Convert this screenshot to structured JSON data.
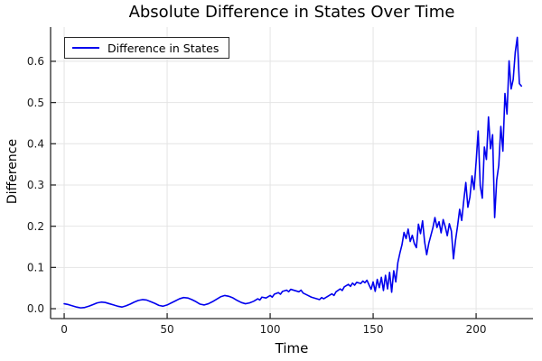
{
  "chart_data": {
    "type": "line",
    "title": "Absolute Difference in States Over Time",
    "xlabel": "Time",
    "ylabel": "Difference",
    "grid": true,
    "legend_position": "top-left",
    "xlim": [
      -6.6,
      227.6
    ],
    "ylim": [
      -0.024,
      0.683
    ],
    "xticks": [
      {
        "v": 0,
        "label": "0"
      },
      {
        "v": 50,
        "label": "50"
      },
      {
        "v": 100,
        "label": "100"
      },
      {
        "v": 150,
        "label": "150"
      },
      {
        "v": 200,
        "label": "200"
      }
    ],
    "yticks": [
      {
        "v": 0.0,
        "label": "0.0"
      },
      {
        "v": 0.1,
        "label": "0.1"
      },
      {
        "v": 0.2,
        "label": "0.2"
      },
      {
        "v": 0.3,
        "label": "0.3"
      },
      {
        "v": 0.4,
        "label": "0.4"
      },
      {
        "v": 0.5,
        "label": "0.5"
      },
      {
        "v": 0.6,
        "label": "0.6"
      }
    ],
    "colors": {
      "line": "#0000ee",
      "grid": "#e4e4e4",
      "axis": "#2a2a2a",
      "tick_text": "#1a1a1a",
      "background": "#ffffff"
    },
    "series": [
      {
        "name": "Difference in States",
        "color": "#0000ee",
        "points": [
          [
            0,
            0.012
          ],
          [
            2,
            0.01
          ],
          [
            4,
            0.007
          ],
          [
            6,
            0.004
          ],
          [
            8,
            0.002
          ],
          [
            10,
            0.003
          ],
          [
            12,
            0.006
          ],
          [
            14,
            0.01
          ],
          [
            16,
            0.014
          ],
          [
            18,
            0.016
          ],
          [
            20,
            0.015
          ],
          [
            22,
            0.012
          ],
          [
            24,
            0.009
          ],
          [
            26,
            0.006
          ],
          [
            28,
            0.004
          ],
          [
            30,
            0.007
          ],
          [
            32,
            0.011
          ],
          [
            34,
            0.016
          ],
          [
            36,
            0.02
          ],
          [
            38,
            0.022
          ],
          [
            40,
            0.021
          ],
          [
            42,
            0.017
          ],
          [
            44,
            0.013
          ],
          [
            46,
            0.008
          ],
          [
            48,
            0.006
          ],
          [
            50,
            0.009
          ],
          [
            52,
            0.014
          ],
          [
            54,
            0.019
          ],
          [
            56,
            0.024
          ],
          [
            58,
            0.027
          ],
          [
            60,
            0.026
          ],
          [
            62,
            0.022
          ],
          [
            64,
            0.017
          ],
          [
            66,
            0.011
          ],
          [
            68,
            0.009
          ],
          [
            70,
            0.012
          ],
          [
            72,
            0.017
          ],
          [
            74,
            0.023
          ],
          [
            76,
            0.029
          ],
          [
            78,
            0.032
          ],
          [
            80,
            0.03
          ],
          [
            82,
            0.026
          ],
          [
            84,
            0.02
          ],
          [
            86,
            0.015
          ],
          [
            88,
            0.012
          ],
          [
            90,
            0.014
          ],
          [
            92,
            0.018
          ],
          [
            94,
            0.024
          ],
          [
            95,
            0.021
          ],
          [
            96,
            0.028
          ],
          [
            98,
            0.026
          ],
          [
            100,
            0.032
          ],
          [
            101,
            0.028
          ],
          [
            102,
            0.035
          ],
          [
            104,
            0.039
          ],
          [
            105,
            0.035
          ],
          [
            106,
            0.042
          ],
          [
            108,
            0.045
          ],
          [
            109,
            0.041
          ],
          [
            110,
            0.047
          ],
          [
            112,
            0.044
          ],
          [
            114,
            0.041
          ],
          [
            115,
            0.045
          ],
          [
            116,
            0.038
          ],
          [
            118,
            0.033
          ],
          [
            120,
            0.028
          ],
          [
            122,
            0.025
          ],
          [
            124,
            0.022
          ],
          [
            125,
            0.027
          ],
          [
            126,
            0.024
          ],
          [
            128,
            0.03
          ],
          [
            130,
            0.036
          ],
          [
            131,
            0.032
          ],
          [
            132,
            0.041
          ],
          [
            134,
            0.048
          ],
          [
            135,
            0.044
          ],
          [
            136,
            0.053
          ],
          [
            138,
            0.059
          ],
          [
            139,
            0.054
          ],
          [
            140,
            0.062
          ],
          [
            141,
            0.057
          ],
          [
            142,
            0.064
          ],
          [
            144,
            0.061
          ],
          [
            145,
            0.067
          ],
          [
            146,
            0.063
          ],
          [
            147,
            0.069
          ],
          [
            148,
            0.058
          ],
          [
            149,
            0.047
          ],
          [
            150,
            0.065
          ],
          [
            151,
            0.042
          ],
          [
            152,
            0.071
          ],
          [
            153,
            0.051
          ],
          [
            154,
            0.076
          ],
          [
            155,
            0.044
          ],
          [
            156,
            0.081
          ],
          [
            157,
            0.048
          ],
          [
            158,
            0.088
          ],
          [
            159,
            0.04
          ],
          [
            160,
            0.092
          ],
          [
            161,
            0.065
          ],
          [
            162,
            0.112
          ],
          [
            163,
            0.135
          ],
          [
            164,
            0.155
          ],
          [
            165,
            0.185
          ],
          [
            166,
            0.17
          ],
          [
            167,
            0.193
          ],
          [
            168,
            0.163
          ],
          [
            169,
            0.178
          ],
          [
            170,
            0.158
          ],
          [
            171,
            0.148
          ],
          [
            172,
            0.205
          ],
          [
            173,
            0.182
          ],
          [
            174,
            0.213
          ],
          [
            175,
            0.162
          ],
          [
            176,
            0.131
          ],
          [
            177,
            0.158
          ],
          [
            178,
            0.177
          ],
          [
            179,
            0.196
          ],
          [
            180,
            0.221
          ],
          [
            181,
            0.197
          ],
          [
            182,
            0.211
          ],
          [
            183,
            0.184
          ],
          [
            184,
            0.216
          ],
          [
            185,
            0.199
          ],
          [
            186,
            0.177
          ],
          [
            187,
            0.206
          ],
          [
            188,
            0.188
          ],
          [
            189,
            0.121
          ],
          [
            190,
            0.166
          ],
          [
            191,
            0.201
          ],
          [
            192,
            0.241
          ],
          [
            193,
            0.214
          ],
          [
            194,
            0.262
          ],
          [
            195,
            0.306
          ],
          [
            196,
            0.246
          ],
          [
            197,
            0.271
          ],
          [
            198,
            0.322
          ],
          [
            199,
            0.289
          ],
          [
            200,
            0.356
          ],
          [
            201,
            0.431
          ],
          [
            202,
            0.298
          ],
          [
            203,
            0.268
          ],
          [
            204,
            0.392
          ],
          [
            205,
            0.362
          ],
          [
            206,
            0.465
          ],
          [
            207,
            0.388
          ],
          [
            208,
            0.422
          ],
          [
            209,
            0.221
          ],
          [
            210,
            0.312
          ],
          [
            211,
            0.348
          ],
          [
            212,
            0.442
          ],
          [
            213,
            0.382
          ],
          [
            214,
            0.522
          ],
          [
            215,
            0.472
          ],
          [
            216,
            0.601
          ],
          [
            217,
            0.533
          ],
          [
            218,
            0.556
          ],
          [
            219,
            0.622
          ],
          [
            220,
            0.658
          ],
          [
            221,
            0.546
          ],
          [
            222,
            0.54
          ]
        ]
      }
    ]
  }
}
